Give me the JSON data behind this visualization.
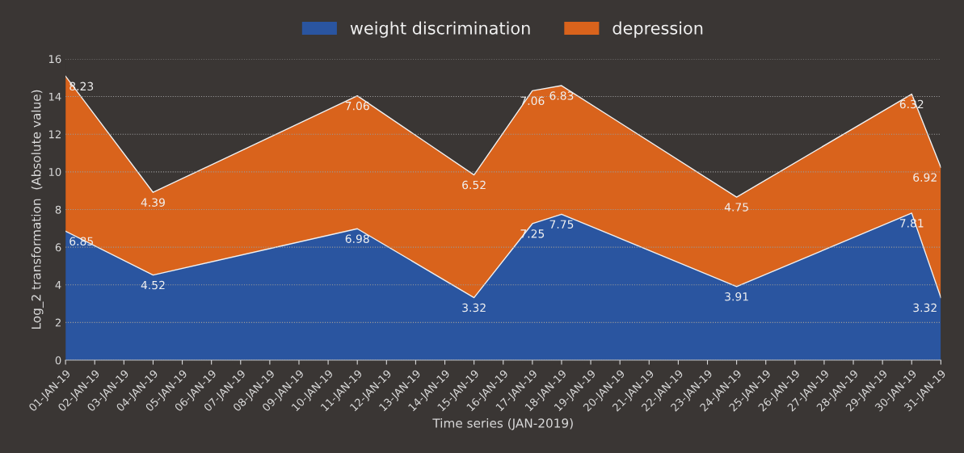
{
  "chart_data": {
    "type": "area",
    "stacked": true,
    "data_labels": true,
    "grid": "y",
    "legend": "top",
    "xlabel": "Time series (JAN-2019)",
    "ylabel": "Log_2 transformation  (Absolute value)",
    "x": [
      "2019-01-01",
      "2019-01-04",
      "2019-01-11",
      "2019-01-15",
      "2019-01-17",
      "2019-01-18",
      "2019-01-24",
      "2019-01-30",
      "2019-01-31"
    ],
    "series": [
      {
        "name": "weight discrimination",
        "color": "#2a55a0",
        "values": [
          6.85,
          4.52,
          6.98,
          3.32,
          7.25,
          7.75,
          3.91,
          7.81,
          3.32
        ]
      },
      {
        "name": "depression",
        "color": "#d9631c",
        "values": [
          8.23,
          4.39,
          7.06,
          6.52,
          7.06,
          6.83,
          4.75,
          6.32,
          6.92
        ]
      }
    ],
    "xlim": [
      "2019-01-01",
      "2019-01-31"
    ],
    "xticks": [
      {
        "value": "2019-01-01",
        "label": "01-JAN-19"
      },
      {
        "value": "2019-01-02",
        "label": "02-JAN-19"
      },
      {
        "value": "2019-01-03",
        "label": "03-JAN-19"
      },
      {
        "value": "2019-01-04",
        "label": "04-JAN-19"
      },
      {
        "value": "2019-01-05",
        "label": "05-JAN-19"
      },
      {
        "value": "2019-01-06",
        "label": "06-JAN-19"
      },
      {
        "value": "2019-01-07",
        "label": "07-JAN-19"
      },
      {
        "value": "2019-01-08",
        "label": "08-JAN-19"
      },
      {
        "value": "2019-01-09",
        "label": "09-JAN-19"
      },
      {
        "value": "2019-01-10",
        "label": "10-JAN-19"
      },
      {
        "value": "2019-01-11",
        "label": "11-JAN-19"
      },
      {
        "value": "2019-01-12",
        "label": "12-JAN-19"
      },
      {
        "value": "2019-01-13",
        "label": "13-JAN-19"
      },
      {
        "value": "2019-01-14",
        "label": "14-JAN-19"
      },
      {
        "value": "2019-01-15",
        "label": "15-JAN-19"
      },
      {
        "value": "2019-01-16",
        "label": "16-JAN-19"
      },
      {
        "value": "2019-01-17",
        "label": "17-JAN-19"
      },
      {
        "value": "2019-01-18",
        "label": "18-JAN-19"
      },
      {
        "value": "2019-01-19",
        "label": "19-JAN-19"
      },
      {
        "value": "2019-01-20",
        "label": "20-JAN-19"
      },
      {
        "value": "2019-01-21",
        "label": "21-JAN-19"
      },
      {
        "value": "2019-01-22",
        "label": "22-JAN-19"
      },
      {
        "value": "2019-01-23",
        "label": "23-JAN-19"
      },
      {
        "value": "2019-01-24",
        "label": "24-JAN-19"
      },
      {
        "value": "2019-01-25",
        "label": "25-JAN-19"
      },
      {
        "value": "2019-01-26",
        "label": "26-JAN-19"
      },
      {
        "value": "2019-01-27",
        "label": "27-JAN-19"
      },
      {
        "value": "2019-01-28",
        "label": "28-JAN-19"
      },
      {
        "value": "2019-01-29",
        "label": "29-JAN-19"
      },
      {
        "value": "2019-01-30",
        "label": "30-JAN-19"
      },
      {
        "value": "2019-01-31",
        "label": "31-JAN-19"
      }
    ],
    "ylim": [
      0,
      16
    ],
    "yticks": [
      0,
      2,
      4,
      6,
      8,
      10,
      12,
      14,
      16
    ]
  }
}
